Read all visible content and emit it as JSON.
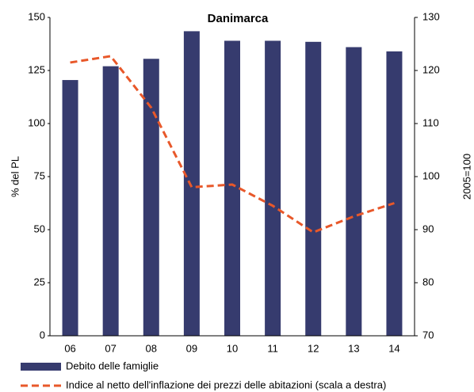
{
  "chart_data": {
    "type": "bar_line",
    "title": "Danimarca",
    "y_label": "% del PL",
    "y2_label": "2005=100",
    "categories": [
      "06",
      "07",
      "08",
      "09",
      "10",
      "11",
      "12",
      "13",
      "14"
    ],
    "series": [
      {
        "name": "Debito delle famiglie",
        "type": "bar",
        "color": "#363b6e",
        "values": [
          120.5,
          127,
          130.5,
          143.5,
          139,
          139,
          138.5,
          136,
          134
        ]
      },
      {
        "name": "Indice al netto dell'inflazione dei prezzi delle abitazioni (scala a destra)",
        "type": "line",
        "axis": "y2",
        "color": "#e8582a",
        "dashed": true,
        "values": [
          121.5,
          122.7,
          113,
          98,
          98.5,
          94.5,
          89.5,
          92.5,
          95
        ]
      }
    ],
    "ylim": [
      0,
      150
    ],
    "yticks": [
      0,
      25,
      50,
      75,
      100,
      125,
      150
    ],
    "y2lim": [
      70,
      130
    ],
    "y2ticks": [
      70,
      80,
      90,
      100,
      110,
      120,
      130
    ]
  }
}
